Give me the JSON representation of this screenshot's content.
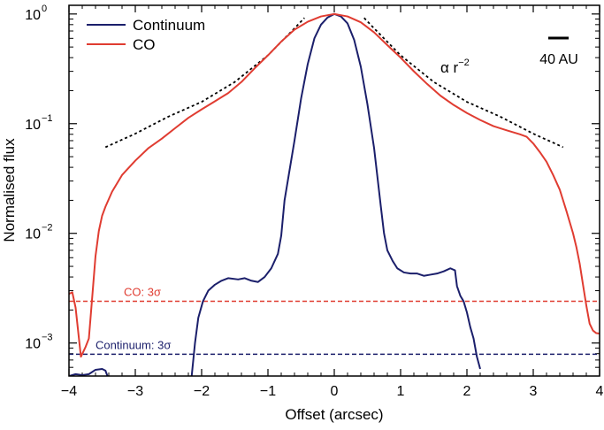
{
  "chart_data": {
    "type": "line",
    "xlabel": "Offset (arcsec)",
    "ylabel": "Normalised flux",
    "xlim": [
      -4,
      4
    ],
    "ylim": [
      0.0005,
      1.2
    ],
    "yscale": "log",
    "grid": false,
    "legend_position": "top-left",
    "x_ticks": [
      -4,
      -3,
      -2,
      -1,
      0,
      1,
      2,
      3,
      4
    ],
    "x_tick_labels": [
      "−4",
      "−3",
      "−2",
      "−1",
      "0",
      "1",
      "2",
      "3",
      "4"
    ],
    "y_ticks": [
      0.001,
      0.01,
      0.1,
      1
    ],
    "y_tick_labels": [
      {
        "base": "10",
        "exp": "−3"
      },
      {
        "base": "10",
        "exp": "−2"
      },
      {
        "base": "10",
        "exp": "−1"
      },
      {
        "base": "10",
        "exp": "0"
      }
    ],
    "series": [
      {
        "name": "Continuum",
        "color": "#1b1f6b",
        "style": "solid",
        "segments": [
          [
            [
              -4.0,
              0.0005
            ],
            [
              -3.9,
              0.00052
            ],
            [
              -3.8,
              0.00051
            ],
            [
              -3.7,
              0.00052
            ],
            [
              -3.6,
              0.00057
            ],
            [
              -3.5,
              0.00058
            ],
            [
              -3.45,
              0.00056
            ],
            [
              -3.42,
              0.0005
            ]
          ],
          [
            [
              -2.15,
              0.0005
            ],
            [
              -2.1,
              0.001
            ],
            [
              -2.05,
              0.0017
            ],
            [
              -1.98,
              0.0024
            ],
            [
              -1.9,
              0.003
            ],
            [
              -1.8,
              0.0034
            ],
            [
              -1.7,
              0.0037
            ],
            [
              -1.6,
              0.0039
            ],
            [
              -1.45,
              0.0038
            ],
            [
              -1.35,
              0.0039
            ],
            [
              -1.25,
              0.0037
            ],
            [
              -1.15,
              0.0036
            ],
            [
              -1.05,
              0.004
            ],
            [
              -0.95,
              0.0048
            ],
            [
              -0.85,
              0.0065
            ],
            [
              -0.8,
              0.0095
            ],
            [
              -0.75,
              0.02
            ],
            [
              -0.6,
              0.07
            ],
            [
              -0.5,
              0.17
            ],
            [
              -0.4,
              0.35
            ],
            [
              -0.3,
              0.6
            ],
            [
              -0.2,
              0.8
            ],
            [
              -0.1,
              0.93
            ],
            [
              0.0,
              1.0
            ],
            [
              0.1,
              0.95
            ],
            [
              0.2,
              0.82
            ],
            [
              0.3,
              0.58
            ],
            [
              0.4,
              0.33
            ],
            [
              0.5,
              0.15
            ],
            [
              0.6,
              0.06
            ],
            [
              0.7,
              0.018
            ],
            [
              0.75,
              0.01
            ],
            [
              0.8,
              0.007
            ],
            [
              0.88,
              0.0056
            ],
            [
              0.95,
              0.0048
            ],
            [
              1.05,
              0.0044
            ],
            [
              1.15,
              0.0043
            ],
            [
              1.25,
              0.0043
            ],
            [
              1.35,
              0.0041
            ],
            [
              1.45,
              0.0042
            ],
            [
              1.55,
              0.0043
            ],
            [
              1.65,
              0.0045
            ],
            [
              1.75,
              0.0048
            ],
            [
              1.82,
              0.0046
            ],
            [
              1.85,
              0.0033
            ],
            [
              1.9,
              0.0027
            ],
            [
              1.95,
              0.0024
            ],
            [
              2.0,
              0.0019
            ],
            [
              2.05,
              0.0014
            ],
            [
              2.1,
              0.0011
            ],
            [
              2.15,
              0.00075
            ],
            [
              2.2,
              0.00058
            ]
          ]
        ]
      },
      {
        "name": "CO",
        "color": "#e03c31",
        "style": "solid",
        "segments": [
          [
            [
              -4.0,
              0.0028
            ],
            [
              -3.95,
              0.0029
            ],
            [
              -3.9,
              0.0021
            ],
            [
              -3.85,
              0.0011
            ],
            [
              -3.82,
              0.00075
            ],
            [
              -3.75,
              0.00092
            ],
            [
              -3.7,
              0.0011
            ],
            [
              -3.65,
              0.0026
            ],
            [
              -3.6,
              0.0062
            ],
            [
              -3.55,
              0.0105
            ],
            [
              -3.5,
              0.0145
            ],
            [
              -3.45,
              0.0175
            ],
            [
              -3.35,
              0.024
            ],
            [
              -3.2,
              0.034
            ],
            [
              -3.0,
              0.046
            ],
            [
              -2.8,
              0.06
            ],
            [
              -2.6,
              0.073
            ],
            [
              -2.4,
              0.091
            ],
            [
              -2.2,
              0.113
            ],
            [
              -2.0,
              0.135
            ],
            [
              -1.8,
              0.16
            ],
            [
              -1.6,
              0.19
            ],
            [
              -1.4,
              0.24
            ],
            [
              -1.2,
              0.32
            ],
            [
              -1.0,
              0.42
            ],
            [
              -0.8,
              0.56
            ],
            [
              -0.6,
              0.72
            ],
            [
              -0.4,
              0.85
            ],
            [
              -0.2,
              0.95
            ],
            [
              0.0,
              1.0
            ],
            [
              0.2,
              0.95
            ],
            [
              0.4,
              0.84
            ],
            [
              0.6,
              0.68
            ],
            [
              0.8,
              0.52
            ],
            [
              1.0,
              0.4
            ],
            [
              1.2,
              0.3
            ],
            [
              1.4,
              0.23
            ],
            [
              1.6,
              0.18
            ],
            [
              1.8,
              0.148
            ],
            [
              2.0,
              0.125
            ],
            [
              2.2,
              0.108
            ],
            [
              2.4,
              0.095
            ],
            [
              2.6,
              0.087
            ],
            [
              2.8,
              0.08
            ],
            [
              2.9,
              0.076
            ],
            [
              3.0,
              0.066
            ],
            [
              3.1,
              0.055
            ],
            [
              3.2,
              0.045
            ],
            [
              3.3,
              0.034
            ],
            [
              3.4,
              0.025
            ],
            [
              3.5,
              0.016
            ],
            [
              3.6,
              0.01
            ],
            [
              3.65,
              0.0075
            ],
            [
              3.7,
              0.0053
            ],
            [
              3.75,
              0.0034
            ],
            [
              3.8,
              0.0022
            ],
            [
              3.85,
              0.0015
            ],
            [
              3.9,
              0.0013
            ],
            [
              3.95,
              0.00123
            ],
            [
              4.0,
              0.00122
            ]
          ]
        ]
      }
    ],
    "fits": [
      {
        "label": "α r",
        "label_sup": "−2",
        "color": "#000000",
        "style": "dotted",
        "formula_points": [
          [
            -3.45,
            0.061
          ],
          [
            -3.0,
            0.081
          ],
          [
            -2.5,
            0.116
          ],
          [
            -2.0,
            0.158
          ],
          [
            -1.5,
            0.24
          ],
          [
            -1.0,
            0.42
          ],
          [
            -0.6,
            0.74
          ],
          [
            -0.45,
            0.92
          ],
          [
            0.45,
            0.92
          ],
          [
            0.6,
            0.74
          ],
          [
            1.0,
            0.42
          ],
          [
            1.5,
            0.24
          ],
          [
            2.0,
            0.158
          ],
          [
            2.5,
            0.116
          ],
          [
            3.0,
            0.081
          ],
          [
            3.45,
            0.061
          ]
        ]
      }
    ],
    "hlines": [
      {
        "label": "CO: 3σ",
        "y": 0.0024,
        "color": "#e03c31",
        "style": "dashed"
      },
      {
        "label": "Continuum: 3σ",
        "y": 0.00079,
        "color": "#1b1f6b",
        "style": "dashed"
      }
    ],
    "scale_bar": {
      "label": "40 AU",
      "color": "#000000"
    }
  }
}
